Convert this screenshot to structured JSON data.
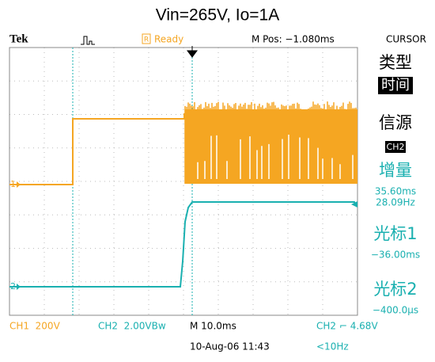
{
  "title": "Vin=265V, Io=1A",
  "header": {
    "brand": "Tek",
    "status": "Ready",
    "status_icon": "R",
    "position": "M Pos: −1.080ms",
    "menu": "CURSOR"
  },
  "channel_markers": [
    "1",
    "2"
  ],
  "panel": {
    "type_label": "类型",
    "type_value": "时间",
    "source_label": "信源",
    "source_value": "CH2",
    "delta_label": "增量",
    "delta_time": "35.60ms",
    "delta_freq": "28.09Hz",
    "cursor1_label": "光标1",
    "cursor1_value": "−36.00ms",
    "cursor2_label": "光标2",
    "cursor2_value": "−400.0µs"
  },
  "footer": {
    "ch1": "CH1  200V",
    "ch2": "CH2  2.00VBw",
    "timebase": "M 10.0ms",
    "trigger": "CH2 ⌐ 4.68V",
    "datetime": "10-Aug-06 11:43",
    "frequency": "<10Hz"
  }
}
